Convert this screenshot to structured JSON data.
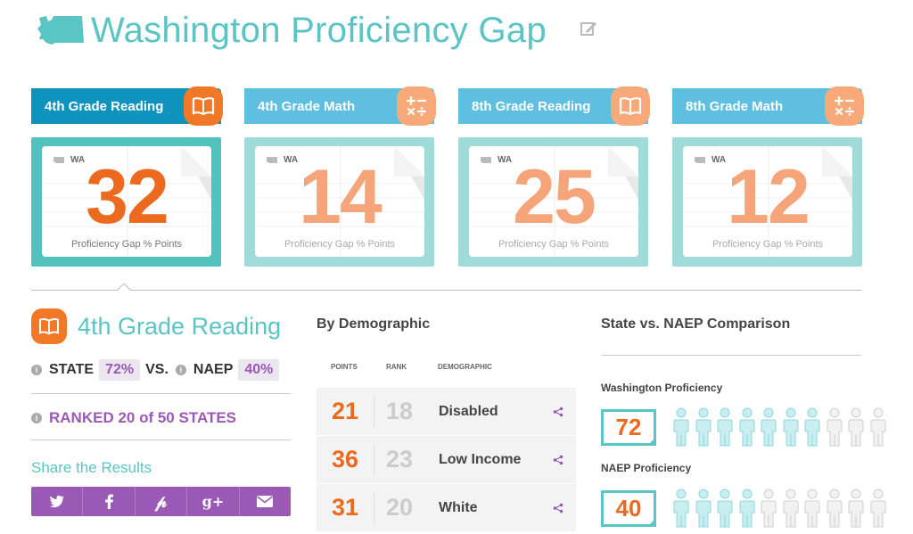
{
  "header": {
    "title": "Washington Proficiency Gap",
    "icon": "washington-state-icon",
    "edit_icon": "edit-icon"
  },
  "cards": [
    {
      "label": "4th Grade Reading",
      "icon": "book-icon",
      "state": "WA",
      "value": "32",
      "caption": "Proficiency Gap % Points",
      "active": true
    },
    {
      "label": "4th Grade Math",
      "icon": "math-icon",
      "state": "WA",
      "value": "14",
      "caption": "Proficiency Gap % Points",
      "active": false
    },
    {
      "label": "8th Grade Reading",
      "icon": "book-icon",
      "state": "WA",
      "value": "25",
      "caption": "Proficiency Gap % Points",
      "active": false
    },
    {
      "label": "8th Grade Math",
      "icon": "math-icon",
      "state": "WA",
      "value": "12",
      "caption": "Proficiency Gap % Points",
      "active": false
    }
  ],
  "detail": {
    "title": "4th Grade Reading",
    "state_label": "STATE",
    "state_value": "72%",
    "vs": "VS.",
    "naep_label": "NAEP",
    "naep_value": "40%",
    "ranked": "RANKED 20 of 50 STATES",
    "share_title": "Share the Results",
    "share_buttons": [
      "twitter-icon",
      "facebook-icon",
      "pinterest-icon",
      "google-plus-icon",
      "email-icon"
    ]
  },
  "demographic": {
    "title": "By Demographic",
    "headers": {
      "points": "POINTS",
      "rank": "RANK",
      "demographic": "DEMOGRAPHIC"
    },
    "rows": [
      {
        "points": "21",
        "rank": "18",
        "label": "Disabled"
      },
      {
        "points": "36",
        "rank": "23",
        "label": "Low Income"
      },
      {
        "points": "31",
        "rank": "20",
        "label": "White"
      }
    ]
  },
  "comparison": {
    "title": "State vs. NAEP Comparison",
    "state": {
      "label": "Washington Proficiency",
      "value": "72",
      "filled": 7,
      "total": 10
    },
    "naep": {
      "label": "NAEP Proficiency",
      "value": "40",
      "filled": 4,
      "total": 10
    }
  },
  "colors": {
    "teal": "#5bc4c4",
    "blue_active": "#0e93bf",
    "blue_inactive": "#5fbfe0",
    "orange": "#ec6a1f",
    "purple": "#9b59b6"
  }
}
